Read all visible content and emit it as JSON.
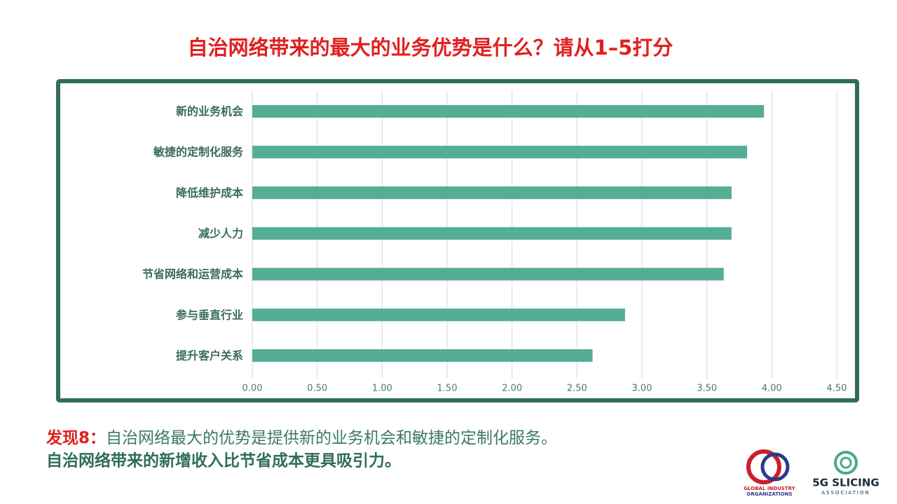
{
  "title": "自治网络带来的最大的业务优势是什么？请从1–5打分",
  "chart_data": {
    "type": "bar",
    "orientation": "horizontal",
    "categories": [
      "新的业务机会",
      "敏捷的定制化服务",
      "降低维护成本",
      "减少人力",
      "节省网络和运营成本",
      "参与垂直行业",
      "提升客户关系"
    ],
    "values": [
      3.94,
      3.81,
      3.69,
      3.69,
      3.63,
      2.87,
      2.62
    ],
    "color": "#55ad96",
    "xlim": [
      0,
      4.5
    ],
    "xticks": [
      {
        "value": 0,
        "label": "0.00"
      },
      {
        "value": 0.5,
        "label": "0.50"
      },
      {
        "value": 1,
        "label": "1.00"
      },
      {
        "value": 1.5,
        "label": "1.50"
      },
      {
        "value": 2,
        "label": "2.00"
      },
      {
        "value": 2.5,
        "label": "2.50"
      },
      {
        "value": 3,
        "label": "3.00"
      },
      {
        "value": 3.5,
        "label": "3.50"
      },
      {
        "value": 4,
        "label": "4.00"
      },
      {
        "value": 4.5,
        "label": "4.50"
      }
    ],
    "grid": true
  },
  "finding": {
    "heading": "发现8：",
    "text": "自治网络最大的优势是提供新的业务机会和敏捷的定制化服务。"
  },
  "conclusion": "自治网络带来的新增收入比节省成本更具吸引力。",
  "logos": [
    {
      "lines": [
        "GLOBAL INDUSTRY",
        "ORGANIZATIONS"
      ]
    },
    {
      "lines": [
        "5G SLICING",
        "ASSOCIATION"
      ]
    }
  ]
}
